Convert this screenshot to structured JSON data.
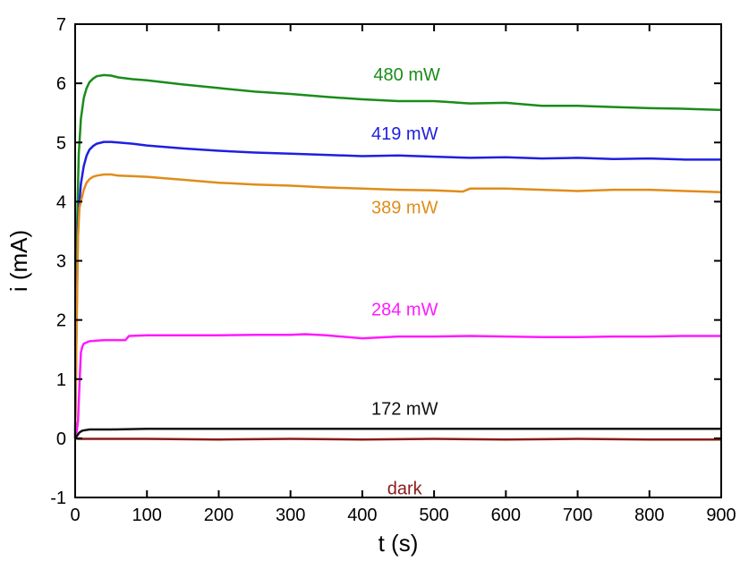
{
  "chart_data": {
    "type": "line",
    "xlabel": "t (s)",
    "ylabel": "i (mA)",
    "xlim": [
      0,
      900
    ],
    "ylim": [
      -1,
      7
    ],
    "xticks": [
      0,
      100,
      200,
      300,
      400,
      500,
      600,
      700,
      800,
      900
    ],
    "yticks": [
      -1,
      0,
      1,
      2,
      3,
      4,
      5,
      6,
      7
    ],
    "grid": false,
    "legend": "inline-labels",
    "series": [
      {
        "name": "480 mW",
        "color": "#1a8c1a",
        "label_pos": [
          462,
          6.05
        ],
        "x": [
          0,
          2,
          5,
          8,
          12,
          16,
          20,
          25,
          30,
          40,
          50,
          60,
          80,
          100,
          150,
          200,
          250,
          300,
          350,
          400,
          450,
          500,
          550,
          600,
          650,
          700,
          750,
          800,
          850,
          900
        ],
        "y": [
          0.0,
          3.2,
          4.8,
          5.4,
          5.75,
          5.92,
          6.02,
          6.08,
          6.12,
          6.14,
          6.13,
          6.1,
          6.07,
          6.05,
          5.98,
          5.92,
          5.86,
          5.82,
          5.77,
          5.73,
          5.7,
          5.7,
          5.66,
          5.67,
          5.62,
          5.62,
          5.6,
          5.58,
          5.57,
          5.55
        ]
      },
      {
        "name": "419 mW",
        "color": "#1f1fe0",
        "label_pos": [
          459,
          5.05
        ],
        "x": [
          0,
          2,
          4,
          6,
          8,
          12,
          16,
          20,
          25,
          30,
          40,
          50,
          60,
          80,
          100,
          150,
          200,
          250,
          300,
          350,
          400,
          450,
          500,
          550,
          600,
          650,
          700,
          750,
          800,
          850,
          900
        ],
        "y": [
          0.0,
          2.0,
          3.6,
          4.0,
          4.3,
          4.6,
          4.78,
          4.88,
          4.94,
          4.98,
          5.01,
          5.01,
          5.0,
          4.98,
          4.95,
          4.9,
          4.86,
          4.83,
          4.81,
          4.79,
          4.77,
          4.78,
          4.76,
          4.74,
          4.75,
          4.73,
          4.74,
          4.72,
          4.73,
          4.71,
          4.71
        ]
      },
      {
        "name": "389 mW",
        "color": "#e08c1a",
        "label_pos": [
          459,
          3.8
        ],
        "x": [
          0,
          2,
          4,
          6,
          8,
          12,
          16,
          20,
          25,
          30,
          40,
          50,
          60,
          80,
          100,
          150,
          200,
          250,
          300,
          350,
          400,
          450,
          500,
          540,
          550,
          600,
          650,
          700,
          750,
          800,
          850,
          900
        ],
        "y": [
          0.0,
          1.8,
          3.4,
          3.9,
          4.0,
          4.2,
          4.32,
          4.38,
          4.42,
          4.44,
          4.46,
          4.46,
          4.44,
          4.43,
          4.42,
          4.37,
          4.32,
          4.29,
          4.27,
          4.24,
          4.22,
          4.2,
          4.19,
          4.17,
          4.22,
          4.22,
          4.2,
          4.18,
          4.2,
          4.2,
          4.18,
          4.16
        ]
      },
      {
        "name": "284 mW",
        "color": "#ff1aff",
        "label_pos": [
          459,
          2.08
        ],
        "x": [
          0,
          2,
          4,
          6,
          8,
          10,
          12,
          20,
          40,
          70,
          75,
          100,
          150,
          200,
          250,
          300,
          320,
          350,
          400,
          450,
          500,
          550,
          600,
          650,
          700,
          750,
          800,
          850,
          900
        ],
        "y": [
          0.0,
          0.1,
          0.3,
          0.9,
          1.45,
          1.55,
          1.6,
          1.64,
          1.66,
          1.66,
          1.73,
          1.74,
          1.74,
          1.74,
          1.75,
          1.75,
          1.76,
          1.74,
          1.69,
          1.72,
          1.72,
          1.73,
          1.72,
          1.71,
          1.71,
          1.72,
          1.72,
          1.73,
          1.73
        ]
      },
      {
        "name": "172 mW",
        "color": "#111111",
        "label_pos": [
          459,
          0.4
        ],
        "x": [
          0,
          3,
          6,
          10,
          20,
          50,
          100,
          200,
          300,
          400,
          500,
          600,
          700,
          800,
          900
        ],
        "y": [
          0.0,
          0.05,
          0.1,
          0.13,
          0.15,
          0.15,
          0.16,
          0.16,
          0.16,
          0.16,
          0.16,
          0.16,
          0.16,
          0.16,
          0.16
        ]
      },
      {
        "name": "dark",
        "color": "#8b1a1a",
        "label_pos": [
          459,
          -0.95
        ],
        "x": [
          0,
          5,
          100,
          200,
          300,
          400,
          500,
          600,
          700,
          800,
          900
        ],
        "y": [
          0.0,
          -0.01,
          -0.01,
          -0.02,
          -0.01,
          -0.02,
          -0.01,
          -0.02,
          -0.01,
          -0.02,
          -0.02
        ]
      }
    ]
  }
}
